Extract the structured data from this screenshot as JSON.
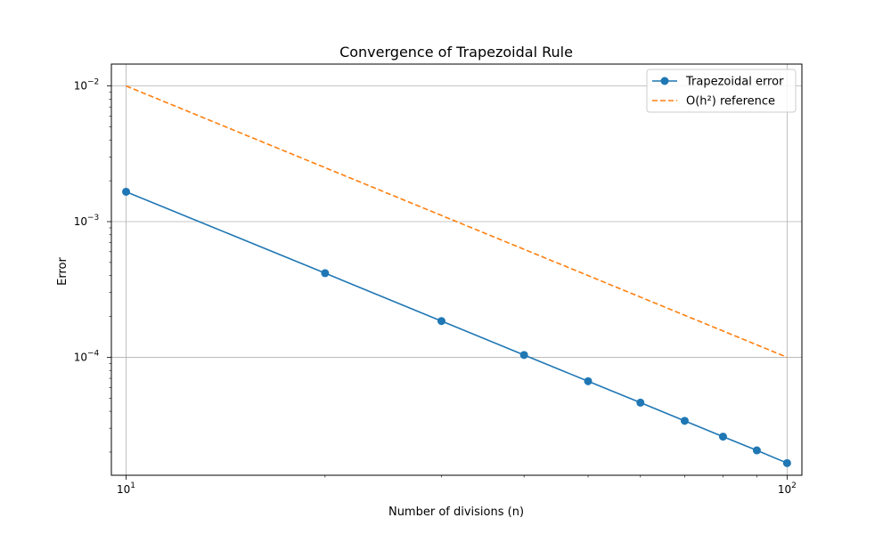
{
  "chart_data": {
    "type": "line",
    "title": "Convergence of Trapezoidal Rule",
    "xlabel": "Number of divisions (n)",
    "ylabel": "Error",
    "xscale": "log",
    "yscale": "log",
    "xlim": [
      9.5,
      105.3
    ],
    "ylim": [
      1.35e-05,
      0.0145
    ],
    "grid": true,
    "legend_position": "top-right",
    "x_ticks": [
      {
        "value": 10,
        "base": "10",
        "exp": "1"
      },
      {
        "value": 100,
        "base": "10",
        "exp": "2"
      }
    ],
    "y_ticks": [
      {
        "value": 0.0001,
        "base": "10",
        "exp": "−4"
      },
      {
        "value": 0.001,
        "base": "10",
        "exp": "−3"
      },
      {
        "value": 0.01,
        "base": "10",
        "exp": "−2"
      }
    ],
    "series": [
      {
        "name": "Trapezoidal error",
        "color": "#1f77b4",
        "style": "solid",
        "marker": "circle",
        "x": [
          10,
          20,
          30,
          40,
          50,
          60,
          70,
          80,
          90,
          100
        ],
        "y": [
          0.00166,
          0.000417,
          0.000185,
          0.000104,
          6.66e-05,
          4.63e-05,
          3.4e-05,
          2.6e-05,
          2.06e-05,
          1.66e-05
        ]
      },
      {
        "name": "O(h²) reference",
        "color": "#ff7f0e",
        "style": "dashed",
        "marker": "none",
        "x": [
          10,
          20,
          30,
          40,
          50,
          60,
          70,
          80,
          90,
          100
        ],
        "y": [
          0.01,
          0.0025,
          0.001111,
          0.000625,
          0.0004,
          0.0002778,
          0.0002041,
          0.0001563,
          0.0001235,
          0.0001
        ]
      }
    ]
  }
}
